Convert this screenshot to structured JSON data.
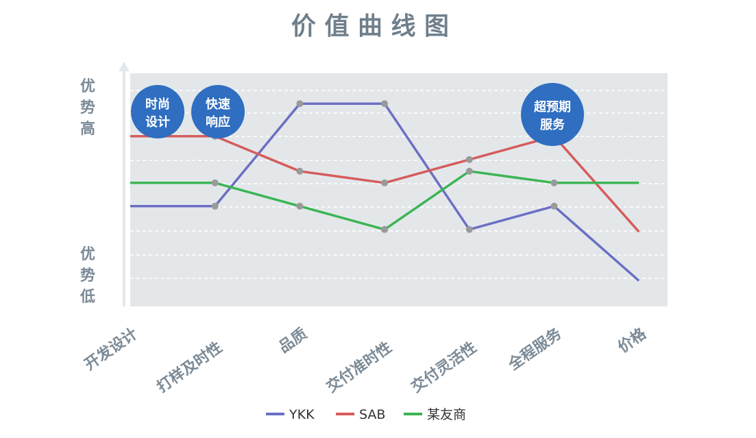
{
  "chart_data": {
    "type": "line",
    "title": "价 值 曲 线 图",
    "ylabel_top": "优势高",
    "ylabel_bottom": "优势低",
    "categories": [
      "开发设计",
      "打样及时性",
      "品质",
      "交付准时性",
      "交付灵活性",
      "全程服务",
      "价格"
    ],
    "ylim": [
      0,
      10
    ],
    "grid": "dashed horizontal",
    "legend": "bottom-center",
    "series": [
      {
        "name": "YKK",
        "color": "#6b6fc4",
        "values": [
          4.3,
          4.3,
          8.7,
          8.7,
          3.3,
          4.3,
          1.1
        ]
      },
      {
        "name": "SAB",
        "color": "#d65c5c",
        "values": [
          7.3,
          7.3,
          5.8,
          5.3,
          6.3,
          7.3,
          3.2
        ]
      },
      {
        "name": "某友商",
        "color": "#3cb554",
        "values": [
          5.3,
          5.3,
          4.3,
          3.3,
          5.8,
          5.3,
          5.3
        ]
      }
    ],
    "annotations": [
      {
        "text": "时尚设计",
        "category": "开发设计"
      },
      {
        "text": "快速响应",
        "category": "打样及时性"
      },
      {
        "text": "超预期服务",
        "category": "全程服务"
      }
    ]
  }
}
